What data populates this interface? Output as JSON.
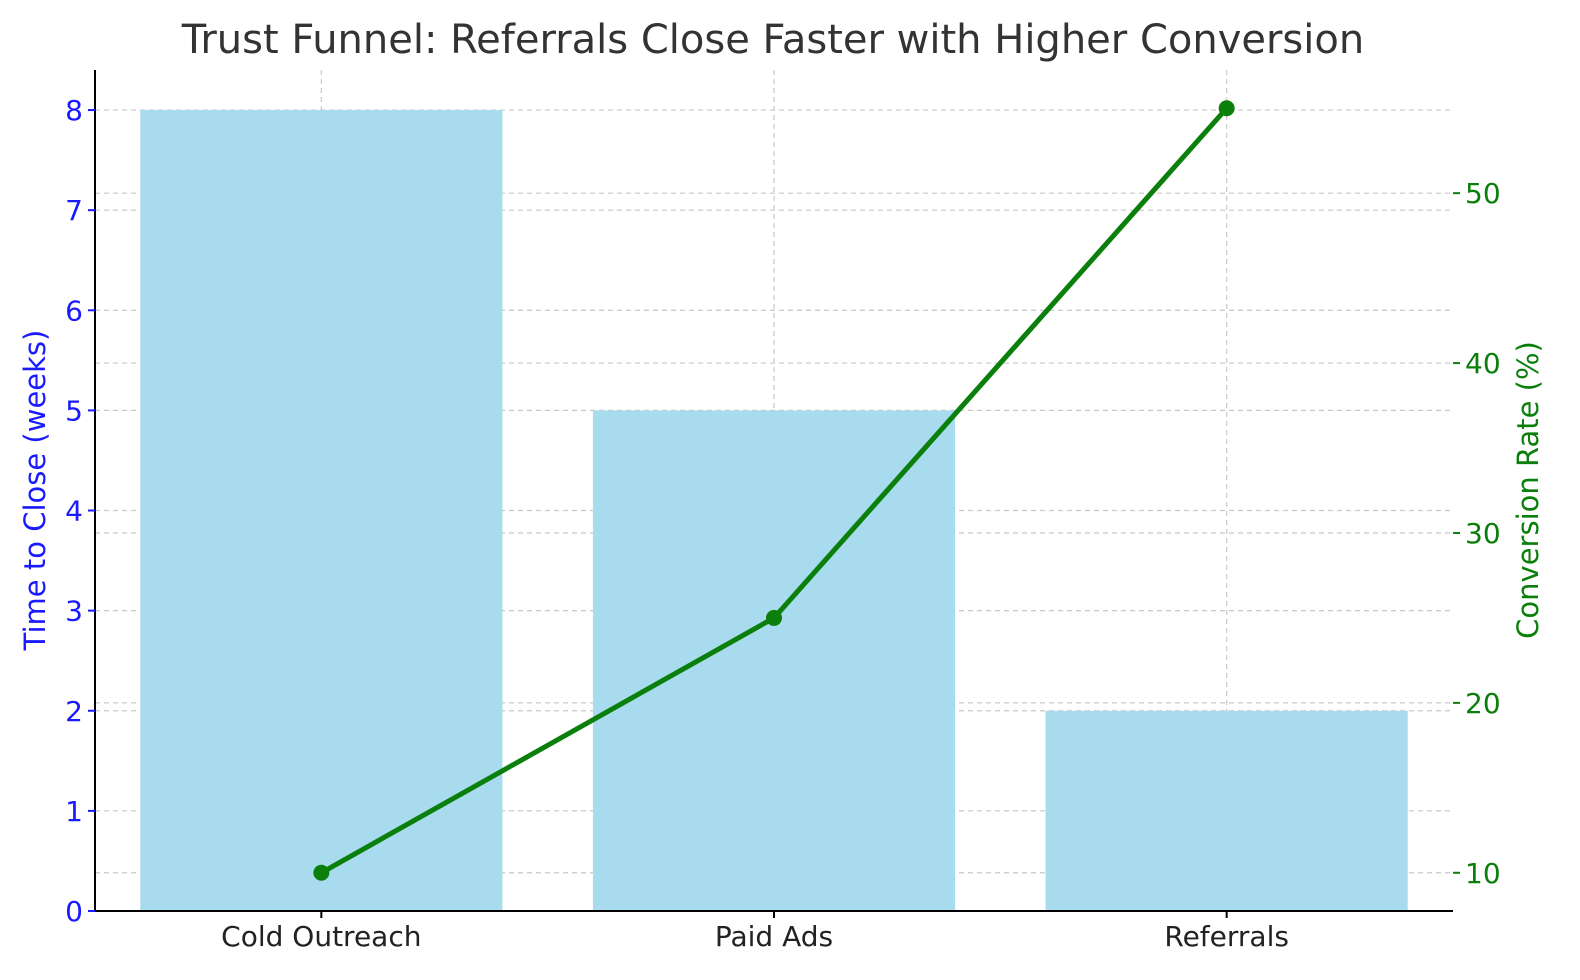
{
  "chart_data": {
    "type": "bar+line",
    "title": "Trust Funnel: Referrals Close Faster with Higher Conversion",
    "categories": [
      "Cold Outreach",
      "Paid Ads",
      "Referrals"
    ],
    "bar_series": {
      "name": "Time to Close (weeks)",
      "values": [
        8,
        5,
        2
      ],
      "color": "#a8dbee"
    },
    "line_series": {
      "name": "Conversion Rate (%)",
      "values": [
        10,
        25,
        55
      ],
      "color": "#0b7f0b"
    },
    "y_left": {
      "label": "Time to Close (weeks)",
      "range": [
        0,
        8.4
      ],
      "ticks": [
        0,
        1,
        2,
        3,
        4,
        5,
        6,
        7,
        8
      ],
      "color": "#1a1aff"
    },
    "y_right": {
      "label": "Conversion Rate (%)",
      "range": [
        7.75,
        57.25
      ],
      "ticks": [
        10,
        20,
        30,
        40,
        50
      ],
      "color": "#0b7f0b"
    },
    "grid": true
  }
}
